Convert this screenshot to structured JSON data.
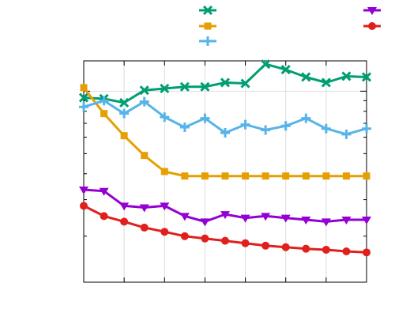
{
  "chart_data": {
    "type": "line",
    "title": "",
    "xlabel": "",
    "ylabel": "",
    "x": [
      0,
      1,
      2,
      3,
      4,
      5,
      6,
      7,
      8,
      9,
      10,
      11,
      12,
      13,
      14
    ],
    "xlim": [
      0,
      14
    ],
    "ylim": [
      0.12,
      1.4
    ],
    "yscale": "log",
    "grid": true,
    "legend_position": "top",
    "series": [
      {
        "color": "#009e73",
        "marker": "x",
        "values": [
          0.93,
          0.92,
          0.88,
          1.01,
          1.03,
          1.05,
          1.05,
          1.1,
          1.09,
          1.35,
          1.27,
          1.17,
          1.1,
          1.18,
          1.17
        ]
      },
      {
        "color": "#e69f00",
        "marker": "square",
        "values": [
          1.04,
          0.78,
          0.61,
          0.49,
          0.41,
          0.39,
          0.39,
          0.39,
          0.39,
          0.39,
          0.39,
          0.39,
          0.39,
          0.39,
          0.39
        ]
      },
      {
        "color": "#56b4e9",
        "marker": "plus",
        "values": [
          0.84,
          0.9,
          0.78,
          0.89,
          0.75,
          0.67,
          0.74,
          0.63,
          0.69,
          0.65,
          0.68,
          0.74,
          0.66,
          0.62,
          0.66
        ]
      },
      {
        "color": "#9400d3",
        "marker": "triangle-down",
        "values": [
          0.335,
          0.33,
          0.28,
          0.275,
          0.28,
          0.25,
          0.235,
          0.255,
          0.245,
          0.25,
          0.245,
          0.24,
          0.235,
          0.24,
          0.24
        ]
      },
      {
        "color": "#e0201b",
        "marker": "circle",
        "values": [
          0.28,
          0.25,
          0.235,
          0.22,
          0.21,
          0.2,
          0.195,
          0.19,
          0.185,
          0.18,
          0.177,
          0.174,
          0.172,
          0.169,
          0.167
        ]
      }
    ]
  }
}
